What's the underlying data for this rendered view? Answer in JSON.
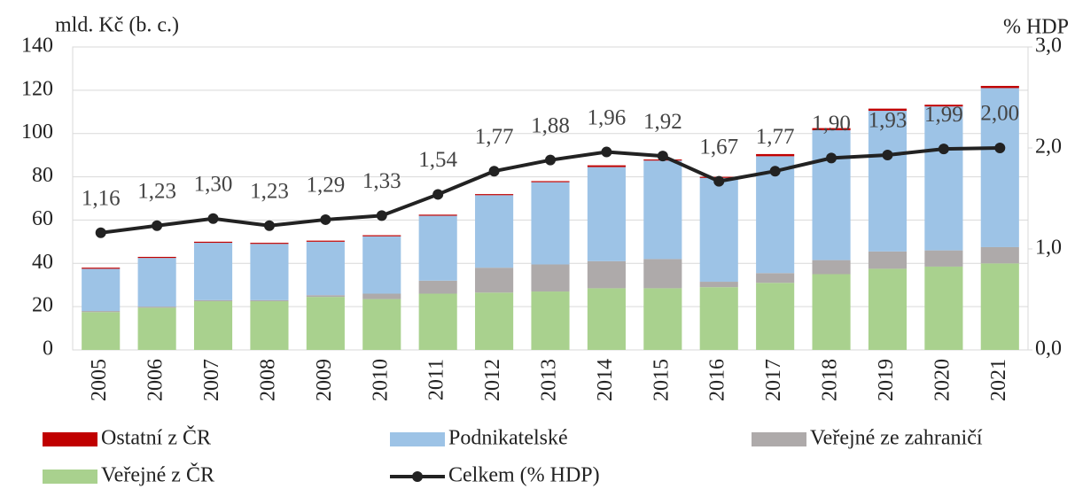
{
  "chart_data": {
    "type": "bar",
    "y_label": "mld. Kč (b. c.)",
    "y2_label": "% HDP",
    "categories": [
      "2005",
      "2006",
      "2007",
      "2008",
      "2009",
      "2010",
      "2011",
      "2012",
      "2013",
      "2014",
      "2015",
      "2016",
      "2017",
      "2018",
      "2019",
      "2020",
      "2021"
    ],
    "series": [
      {
        "name": "Ostatní z ČR",
        "color": "#c00000",
        "values": [
          0.5,
          0.5,
          0.5,
          0.5,
          0.5,
          0.5,
          0.5,
          0.5,
          0.5,
          0.8,
          0.5,
          0.5,
          1,
          1,
          1,
          0.8,
          1
        ]
      },
      {
        "name": "Podnikatelské",
        "color": "#9dc3e6",
        "values": [
          19.5,
          22.5,
          26.5,
          26,
          24.7,
          26.5,
          30,
          33.5,
          38,
          43.5,
          45.5,
          48,
          54,
          60,
          65,
          66.5,
          73.5
        ]
      },
      {
        "name": "Veřejné ze zahraničí",
        "color": "#aeaaaa",
        "values": [
          0.5,
          0.5,
          0.5,
          0.5,
          0.8,
          2.5,
          6,
          11.5,
          12.5,
          12.5,
          13.5,
          2.5,
          4.5,
          6.5,
          8,
          7.5,
          7.5
        ]
      },
      {
        "name": "Veřejné z ČR",
        "color": "#a9d18e",
        "values": [
          17.5,
          19.5,
          22.5,
          22.5,
          24.5,
          23.5,
          26,
          26.5,
          27,
          28.5,
          28.5,
          29,
          31,
          35,
          37.5,
          38.5,
          40
        ]
      },
      {
        "name": "Celkem (% HDP)",
        "color": "#222222",
        "type": "line",
        "axis": "y2",
        "values": [
          1.16,
          1.23,
          1.3,
          1.23,
          1.29,
          1.33,
          1.54,
          1.77,
          1.88,
          1.96,
          1.92,
          1.67,
          1.77,
          1.9,
          1.93,
          1.99,
          2.0
        ],
        "value_labels": [
          "1,16",
          "1,23",
          "1,30",
          "1,23",
          "1,29",
          "1,33",
          "1,54",
          "1,77",
          "1,88",
          "1,96",
          "1,92",
          "1,67",
          "1,77",
          "1,90",
          "1,93",
          "1,99",
          "2,00"
        ]
      }
    ],
    "stacked": true,
    "ylim": [
      0,
      140
    ],
    "yticks": [
      0,
      20,
      40,
      60,
      80,
      100,
      120,
      140
    ],
    "y2lim": [
      0,
      3
    ],
    "y2ticks": [
      {
        "value": 0,
        "label": "0,0"
      },
      {
        "value": 1,
        "label": "1,0"
      },
      {
        "value": 2,
        "label": "2,0"
      },
      {
        "value": 3,
        "label": "3,0"
      }
    ],
    "grid": true,
    "legend": "bottom"
  }
}
